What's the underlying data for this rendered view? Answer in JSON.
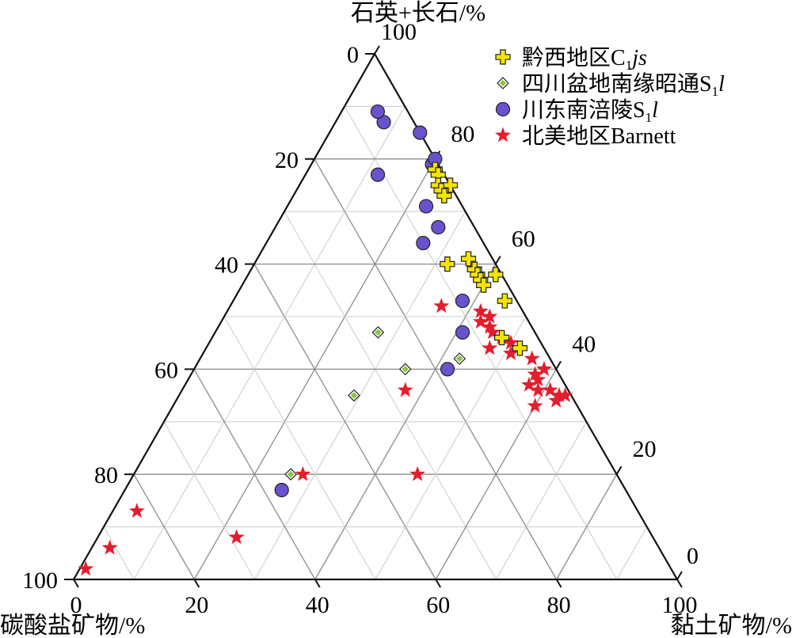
{
  "chart_data": {
    "type": "scatter",
    "subtype": "ternary",
    "axes": {
      "top_label": "石英+长石/%",
      "left_label": "碳酸盐矿物/%",
      "right_label": "黏土矿物/%",
      "range": [
        0,
        100
      ],
      "tick_step": 20,
      "bottom_ticks": [
        "0",
        "20",
        "40",
        "60",
        "80",
        "100"
      ],
      "left_ticks": [
        "0",
        "20",
        "40",
        "60",
        "80",
        "100"
      ],
      "right_ticks": [
        "0",
        "20",
        "40",
        "60",
        "80",
        "100"
      ]
    },
    "grid": true,
    "grid_step": 10,
    "legend_position": "top-right",
    "series": [
      {
        "name": "黔西地区C₁js",
        "legend": {
          "main": "黔西地区C",
          "sub": "1",
          "tail": "js"
        },
        "marker": "plus",
        "color": "#f4e400",
        "points": [
          {
            "q": 78,
            "cl": 21,
            "ca": 1
          },
          {
            "q": 77,
            "cl": 22,
            "ca": 1
          },
          {
            "q": 75,
            "cl": 23,
            "ca": 2
          },
          {
            "q": 75,
            "cl": 25,
            "ca": 0
          },
          {
            "q": 74,
            "cl": 24,
            "ca": 2
          },
          {
            "q": 73,
            "cl": 25,
            "ca": 2
          },
          {
            "q": 60,
            "cl": 32,
            "ca": 8
          },
          {
            "q": 61,
            "cl": 35,
            "ca": 4
          },
          {
            "q": 59,
            "cl": 37,
            "ca": 4
          },
          {
            "q": 58,
            "cl": 38,
            "ca": 4
          },
          {
            "q": 57,
            "cl": 39,
            "ca": 4
          },
          {
            "q": 56,
            "cl": 40,
            "ca": 4
          },
          {
            "q": 58,
            "cl": 41,
            "ca": 1
          },
          {
            "q": 53,
            "cl": 45,
            "ca": 2
          },
          {
            "q": 44,
            "cl": 52,
            "ca": 4
          },
          {
            "q": 46,
            "cl": 48,
            "ca": 6
          }
        ]
      },
      {
        "name": "四川盆地南缘昭通S₁l",
        "legend": {
          "main": "四川盆地南缘昭通S",
          "sub": "1",
          "tail": "l"
        },
        "marker": "diamond",
        "color": "#8bc53f",
        "points": [
          {
            "q": 40,
            "cl": 35,
            "ca": 25
          },
          {
            "q": 47,
            "cl": 27,
            "ca": 26
          },
          {
            "q": 42,
            "cl": 43,
            "ca": 15
          },
          {
            "q": 35,
            "cl": 29,
            "ca": 36
          },
          {
            "q": 20,
            "cl": 26,
            "ca": 54
          }
        ]
      },
      {
        "name": "川东南涪陵S₁l",
        "legend": {
          "main": "川东南涪陵S",
          "sub": "1",
          "tail": "l"
        },
        "marker": "circle",
        "color": "#6a52cf",
        "points": [
          {
            "q": 87,
            "cl": 8,
            "ca": 5
          },
          {
            "q": 89,
            "cl": 6,
            "ca": 5
          },
          {
            "q": 77,
            "cl": 12,
            "ca": 11
          },
          {
            "q": 79,
            "cl": 20,
            "ca": 1
          },
          {
            "q": 80,
            "cl": 20,
            "ca": 0
          },
          {
            "q": 85,
            "cl": 15,
            "ca": 0
          },
          {
            "q": 71,
            "cl": 23,
            "ca": 6
          },
          {
            "q": 67,
            "cl": 27,
            "ca": 6
          },
          {
            "q": 64,
            "cl": 26,
            "ca": 10
          },
          {
            "q": 53,
            "cl": 38,
            "ca": 9
          },
          {
            "q": 47,
            "cl": 41,
            "ca": 12
          },
          {
            "q": 40,
            "cl": 42,
            "ca": 18
          },
          {
            "q": 17,
            "cl": 26,
            "ca": 57
          }
        ]
      },
      {
        "name": "北美地区Barnett",
        "legend": {
          "main": "北美地区Barnett",
          "sub": "",
          "tail": ""
        },
        "marker": "star",
        "color": "#e41d2d",
        "points": [
          {
            "q": 52,
            "cl": 35,
            "ca": 13
          },
          {
            "q": 51,
            "cl": 42,
            "ca": 7
          },
          {
            "q": 50,
            "cl": 44,
            "ca": 6
          },
          {
            "q": 49,
            "cl": 43,
            "ca": 8
          },
          {
            "q": 48,
            "cl": 45,
            "ca": 7
          },
          {
            "q": 47,
            "cl": 46,
            "ca": 7
          },
          {
            "q": 46,
            "cl": 48,
            "ca": 6
          },
          {
            "q": 45,
            "cl": 50,
            "ca": 5
          },
          {
            "q": 44,
            "cl": 47,
            "ca": 9
          },
          {
            "q": 43,
            "cl": 51,
            "ca": 6
          },
          {
            "q": 42,
            "cl": 55,
            "ca": 3
          },
          {
            "q": 40,
            "cl": 58,
            "ca": 2
          },
          {
            "q": 39,
            "cl": 57,
            "ca": 4
          },
          {
            "q": 38,
            "cl": 58,
            "ca": 4
          },
          {
            "q": 37,
            "cl": 57,
            "ca": 6
          },
          {
            "q": 36,
            "cl": 61,
            "ca": 3
          },
          {
            "q": 35,
            "cl": 63,
            "ca": 2
          },
          {
            "q": 36,
            "cl": 59,
            "ca": 5
          },
          {
            "q": 34,
            "cl": 63,
            "ca": 3
          },
          {
            "q": 33,
            "cl": 60,
            "ca": 7
          },
          {
            "q": 35,
            "cl": 64,
            "ca": 1
          },
          {
            "q": 36,
            "cl": 37,
            "ca": 27
          },
          {
            "q": 20,
            "cl": 28,
            "ca": 52
          },
          {
            "q": 20,
            "cl": 47,
            "ca": 33
          },
          {
            "q": 13,
            "cl": 4,
            "ca": 83
          },
          {
            "q": 6,
            "cl": 3,
            "ca": 91
          },
          {
            "q": 8,
            "cl": 23,
            "ca": 69
          },
          {
            "q": 2,
            "cl": 1,
            "ca": 97
          }
        ]
      }
    ]
  }
}
